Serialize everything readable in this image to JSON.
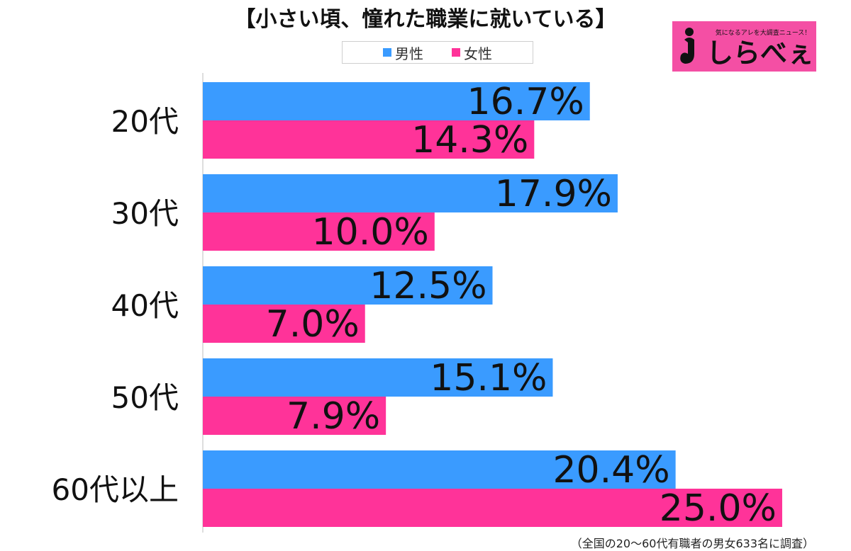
{
  "header": {
    "title": "【小さい頃、憧れた職業に就いている】"
  },
  "logo": {
    "tagline": "気になるアレを大調査ニュース！",
    "text": "しらべぇ",
    "background_color": "#f44fa4"
  },
  "footnote": "（全国の20～60代有職者の男女633名に調査）",
  "colors": {
    "male": "#3a9bff",
    "female": "#ff3399"
  },
  "chart_data": {
    "type": "bar",
    "orientation": "horizontal",
    "categories": [
      "20代",
      "30代",
      "40代",
      "50代",
      "60代以上"
    ],
    "series": [
      {
        "name": "男性",
        "values": [
          16.7,
          17.9,
          12.5,
          15.1,
          20.4
        ],
        "labels": [
          "16.7%",
          "17.9%",
          "12.5%",
          "15.1%",
          "20.4%"
        ]
      },
      {
        "name": "女性",
        "values": [
          14.3,
          10.0,
          7.0,
          7.9,
          25.0
        ],
        "labels": [
          "14.3%",
          "10.0%",
          "7.0%",
          "7.9%",
          "25.0%"
        ]
      }
    ],
    "xlim": [
      0,
      26.5
    ],
    "legend_position": "top-center",
    "grid": false
  }
}
